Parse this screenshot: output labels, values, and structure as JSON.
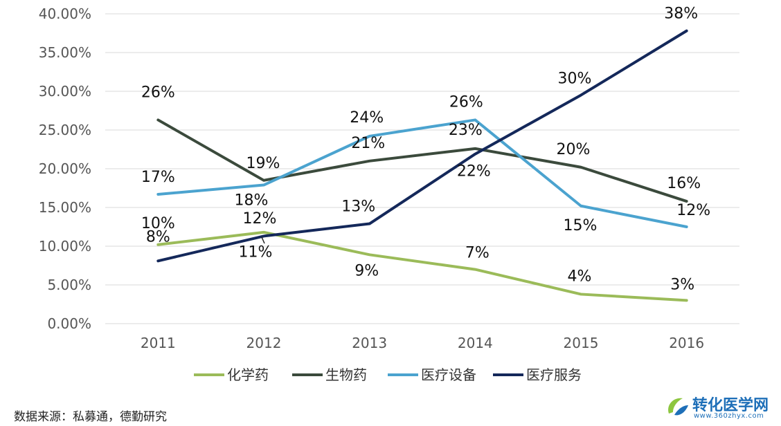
{
  "chart_data": {
    "type": "line",
    "title": "",
    "xlabel": "",
    "ylabel": "",
    "categories": [
      "2011",
      "2012",
      "2013",
      "2014",
      "2015",
      "2016"
    ],
    "ylim": [
      0,
      40
    ],
    "yticks": [
      "0.00%",
      "5.00%",
      "10.00%",
      "15.00%",
      "20.00%",
      "25.00%",
      "30.00%",
      "35.00%",
      "40.00%"
    ],
    "grid": true,
    "legend_position": "bottom",
    "series": [
      {
        "name": "化学药",
        "color": "#9bbb59",
        "values": [
          10.2,
          11.8,
          8.9,
          7.0,
          3.8,
          3.0
        ],
        "labels": [
          "10%",
          "12%",
          "9%",
          "7%",
          "4%",
          "3%"
        ]
      },
      {
        "name": "生物药",
        "color": "#3b4a3c",
        "values": [
          26.3,
          18.5,
          21.0,
          22.6,
          20.2,
          15.8
        ],
        "labels": [
          "26%",
          "19%",
          "21%",
          "23%",
          "20%",
          "16%"
        ]
      },
      {
        "name": "医疗设备",
        "color": "#4ba3cf",
        "values": [
          16.7,
          17.9,
          24.2,
          26.3,
          15.2,
          12.5
        ],
        "labels": [
          "17%",
          "18%",
          "24%",
          "26%",
          "15%",
          "12%"
        ]
      },
      {
        "name": "医疗服务",
        "color": "#14285a",
        "values": [
          8.1,
          11.3,
          12.9,
          21.9,
          29.5,
          37.8
        ],
        "labels": [
          "8%",
          "11%",
          "13%",
          "22%",
          "30%",
          "38%"
        ]
      }
    ]
  },
  "source": "数据来源：私募通，德勤研究",
  "watermark": {
    "name": "转化医学网",
    "url": "www.360zhyx.com"
  }
}
